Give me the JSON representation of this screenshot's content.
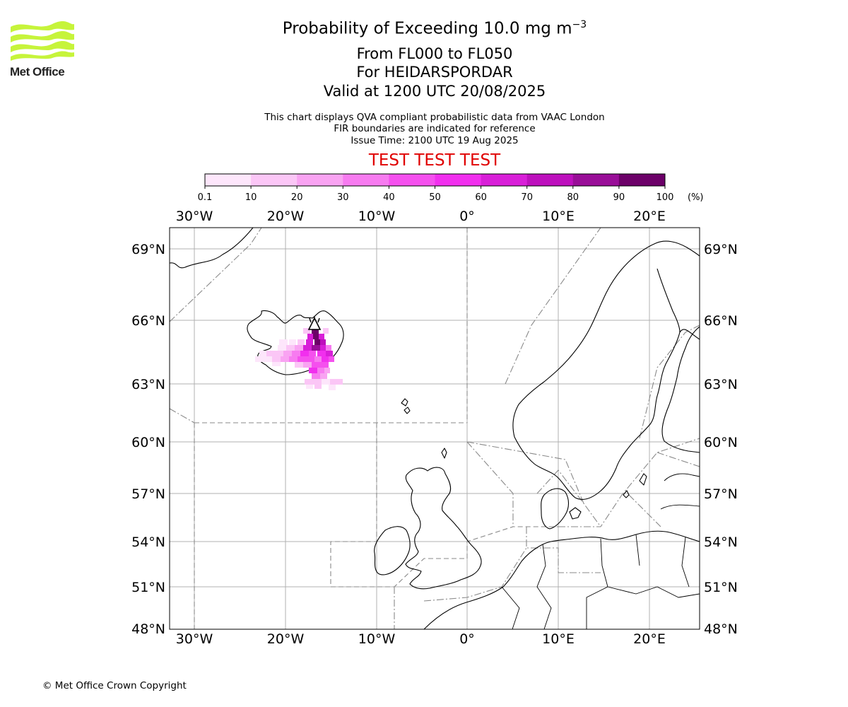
{
  "logo": {
    "text": "Met Office",
    "color": "#c6f43a"
  },
  "header": {
    "title_prefix": "Probability of Exceeding 10.0 mg m",
    "title_exponent": "−3",
    "level_range": "From FL000 to FL050",
    "volcano_line": "For HEIDARSPORDAR",
    "valid_time": "Valid at 1200 UTC 20/08/2025"
  },
  "notes": {
    "line1": "This chart displays QVA compliant probabilistic data from VAAC London",
    "line2": "FIR boundaries are indicated for reference",
    "line3": "Issue Time: 2100 UTC 19 Aug 2025"
  },
  "banner": {
    "text": "TEST TEST TEST",
    "color": "#e00000"
  },
  "colorbar": {
    "ticks": [
      "0.1",
      "10",
      "20",
      "30",
      "40",
      "50",
      "60",
      "70",
      "80",
      "90",
      "100"
    ],
    "unit": "(%)",
    "colors": [
      "#fde6fb",
      "#fbc6f6",
      "#f9a3f2",
      "#f77bf0",
      "#f550ee",
      "#f12fee",
      "#d81fd8",
      "#bd10bd",
      "#990e98",
      "#6c0068"
    ]
  },
  "map": {
    "lon_labels": [
      "30°W",
      "20°W",
      "10°W",
      "0°",
      "10°E",
      "20°E"
    ],
    "lat_labels": [
      "69°N",
      "66°N",
      "63°N",
      "60°N",
      "57°N",
      "54°N",
      "51°N",
      "48°N"
    ],
    "volcano_name": "HEIDARSPORDAR"
  },
  "footer": {
    "copyright": "© Met Office Crown Copyright"
  }
}
